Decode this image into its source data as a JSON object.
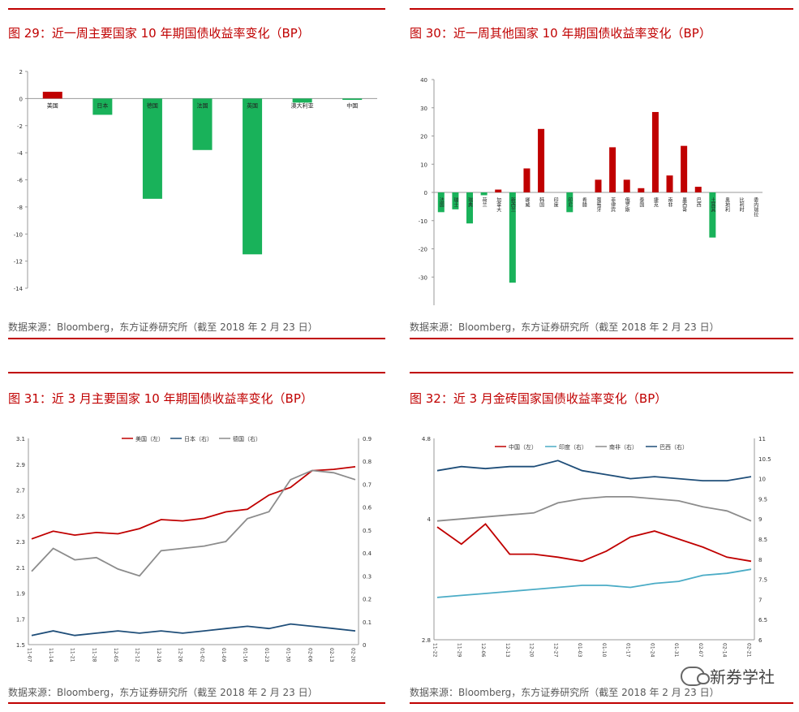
{
  "colors": {
    "red": "#c00000",
    "green": "#19b25a",
    "navy": "#1f4e79",
    "teal": "#4bacc6",
    "gray": "#8c8c8c"
  },
  "panels": [
    {
      "title": "图 29：近一周主要国家 10 年期国债收益率变化（BP）",
      "source": "数据来源：Bloomberg，东方证券研究所（截至 2018 年 2 月 23 日）"
    },
    {
      "title": "图 30：近一周其他国家 10 年期国债收益率变化（BP）",
      "source": "数据来源：Bloomberg，东方证券研究所（截至 2018 年 2 月 23 日）"
    },
    {
      "title": "图 31：近 3 月主要国家 10 年期国债收益率变化（BP）",
      "source": "数据来源：Bloomberg，东方证券研究所（截至 2018 年 2 月 23 日）"
    },
    {
      "title": "图 32：近 3 月金砖国家国债收益率变化（BP）",
      "source": "数据来源：Bloomberg，东方证券研究所（截至 2018 年 2 月 23 日）"
    }
  ],
  "watermark": "新券学社",
  "chart_data": [
    {
      "type": "bar",
      "categories": [
        "美国",
        "日本",
        "德国",
        "法国",
        "英国",
        "澳大利亚",
        "中国"
      ],
      "values": [
        0.5,
        -1.2,
        -7.4,
        -3.8,
        -11.5,
        -0.3,
        -0.1
      ],
      "ylim": [
        -14,
        2
      ],
      "yticks": [
        2,
        0,
        -2,
        -4,
        -6,
        -8,
        -10,
        -12,
        -14
      ]
    },
    {
      "type": "bar",
      "categories": [
        "法国",
        "瑞士",
        "瑞典",
        "荷兰",
        "加拿大",
        "新西兰",
        "挪威",
        "韩国",
        "印度",
        "印尼",
        "希腊",
        "葡萄牙",
        "菲律宾",
        "俄罗斯",
        "泰国",
        "捷克",
        "南非",
        "墨西哥",
        "巴西",
        "土耳其",
        "奥地利",
        "比利时",
        "委内瑞拉"
      ],
      "values": [
        -7,
        -6,
        -11,
        -1,
        1,
        -32,
        8.5,
        22.5,
        0,
        -7,
        0,
        4.5,
        16,
        4.5,
        1.5,
        28.5,
        6,
        16.5,
        2,
        -16,
        0,
        0,
        0
      ],
      "ylim": [
        -40,
        40
      ],
      "yticks": [
        40,
        30,
        20,
        10,
        0,
        -10,
        -20,
        -30
      ]
    },
    {
      "type": "line",
      "x": [
        "11-07",
        "11-14",
        "11-21",
        "11-28",
        "12-05",
        "12-12",
        "12-19",
        "12-26",
        "01-02",
        "01-09",
        "01-16",
        "01-23",
        "01-30",
        "02-06",
        "02-13",
        "02-20"
      ],
      "series": [
        {
          "name": "美国（左）",
          "axis": "left",
          "values": [
            2.32,
            2.38,
            2.35,
            2.37,
            2.36,
            2.4,
            2.47,
            2.46,
            2.48,
            2.53,
            2.55,
            2.66,
            2.72,
            2.85,
            2.86,
            2.88
          ]
        },
        {
          "name": "日本（右）",
          "axis": "right",
          "values": [
            0.04,
            0.06,
            0.04,
            0.05,
            0.06,
            0.05,
            0.06,
            0.05,
            0.06,
            0.07,
            0.08,
            0.07,
            0.09,
            0.08,
            0.07,
            0.06
          ]
        },
        {
          "name": "德国（右）",
          "axis": "right",
          "values": [
            0.32,
            0.42,
            0.37,
            0.38,
            0.33,
            0.3,
            0.41,
            0.42,
            0.43,
            0.45,
            0.55,
            0.58,
            0.72,
            0.76,
            0.75,
            0.72
          ]
        }
      ],
      "ylim_left": [
        1.5,
        3.1
      ],
      "ylim_right": [
        0.0,
        0.9
      ],
      "yticks_left": [
        "3.1",
        "2.9",
        "2.7",
        "2.5",
        "2.3",
        "2.1",
        "1.9",
        "1.7",
        "1.5"
      ],
      "yticks_right": [
        "0.9",
        "0.8",
        "0.7",
        "0.6",
        "0.5",
        "0.4",
        "0.3",
        "0.2",
        "0.1",
        "0"
      ]
    },
    {
      "type": "line",
      "x": [
        "11-22",
        "11-29",
        "12-06",
        "12-13",
        "12-20",
        "12-27",
        "01-03",
        "01-10",
        "01-17",
        "01-24",
        "01-31",
        "02-07",
        "02-14",
        "02-21"
      ],
      "series": [
        {
          "name": "中国（左）",
          "axis": "left",
          "values": [
            3.92,
            3.75,
            3.95,
            3.65,
            3.65,
            3.62,
            3.58,
            3.68,
            3.82,
            3.88,
            3.8,
            3.72,
            3.62,
            3.58
          ]
        },
        {
          "name": "印度（右）",
          "axis": "right",
          "values": [
            7.05,
            7.1,
            7.15,
            7.2,
            7.25,
            7.3,
            7.35,
            7.35,
            7.3,
            7.4,
            7.45,
            7.6,
            7.65,
            7.75
          ]
        },
        {
          "name": "南非（右）",
          "axis": "right",
          "values": [
            8.95,
            9.0,
            9.05,
            9.1,
            9.15,
            9.4,
            9.5,
            9.55,
            9.55,
            9.5,
            9.45,
            9.3,
            9.2,
            8.95
          ]
        },
        {
          "name": "巴西（右）",
          "axis": "right",
          "values": [
            10.2,
            10.3,
            10.25,
            10.3,
            10.3,
            10.45,
            10.2,
            10.1,
            10.0,
            10.05,
            10.0,
            9.95,
            9.95,
            10.05
          ]
        }
      ],
      "ylim_left": [
        2.8,
        4.8
      ],
      "ylim_right": [
        6,
        11
      ],
      "yticks_left": [
        "4.8",
        "4",
        "2.8"
      ],
      "yticks_left_values": [
        4.8,
        4,
        2.8
      ],
      "yticks_right": [
        "11",
        "10.5",
        "10",
        "9.5",
        "9",
        "8.5",
        "8",
        "7.5",
        "7",
        "6.5",
        "6"
      ]
    }
  ]
}
